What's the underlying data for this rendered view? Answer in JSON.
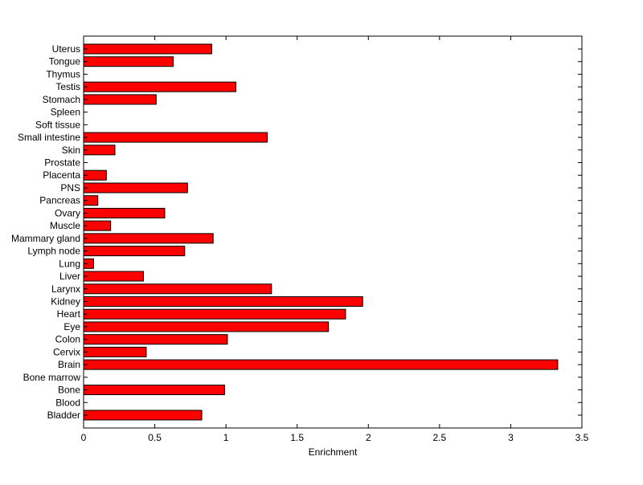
{
  "chart_data": {
    "type": "bar",
    "orientation": "horizontal",
    "title": "",
    "xlabel": "Enrichment",
    "ylabel": "",
    "xlim": [
      0,
      3.5
    ],
    "x_ticks": [
      "0",
      "0.5",
      "1",
      "1.5",
      "2",
      "2.5",
      "3",
      "3.5"
    ],
    "grid": false,
    "bar_color": "#ff0000",
    "categories": [
      "Bladder",
      "Blood",
      "Bone",
      "Bone marrow",
      "Brain",
      "Cervix",
      "Colon",
      "Eye",
      "Heart",
      "Kidney",
      "Larynx",
      "Liver",
      "Lung",
      "Lymph node",
      "Mammary gland",
      "Muscle",
      "Ovary",
      "Pancreas",
      "PNS",
      "Placenta",
      "Prostate",
      "Skin",
      "Small intestine",
      "Soft tissue",
      "Spleen",
      "Stomach",
      "Testis",
      "Thymus",
      "Tongue",
      "Uterus"
    ],
    "values": [
      0.83,
      0,
      0.99,
      0,
      3.33,
      0.44,
      1.01,
      1.72,
      1.84,
      1.96,
      1.32,
      0.42,
      0.07,
      0.71,
      0.91,
      0.19,
      0.57,
      0.1,
      0.73,
      0.16,
      0,
      0.22,
      1.29,
      0,
      0,
      0.51,
      1.07,
      0,
      0.63,
      0.9
    ]
  }
}
